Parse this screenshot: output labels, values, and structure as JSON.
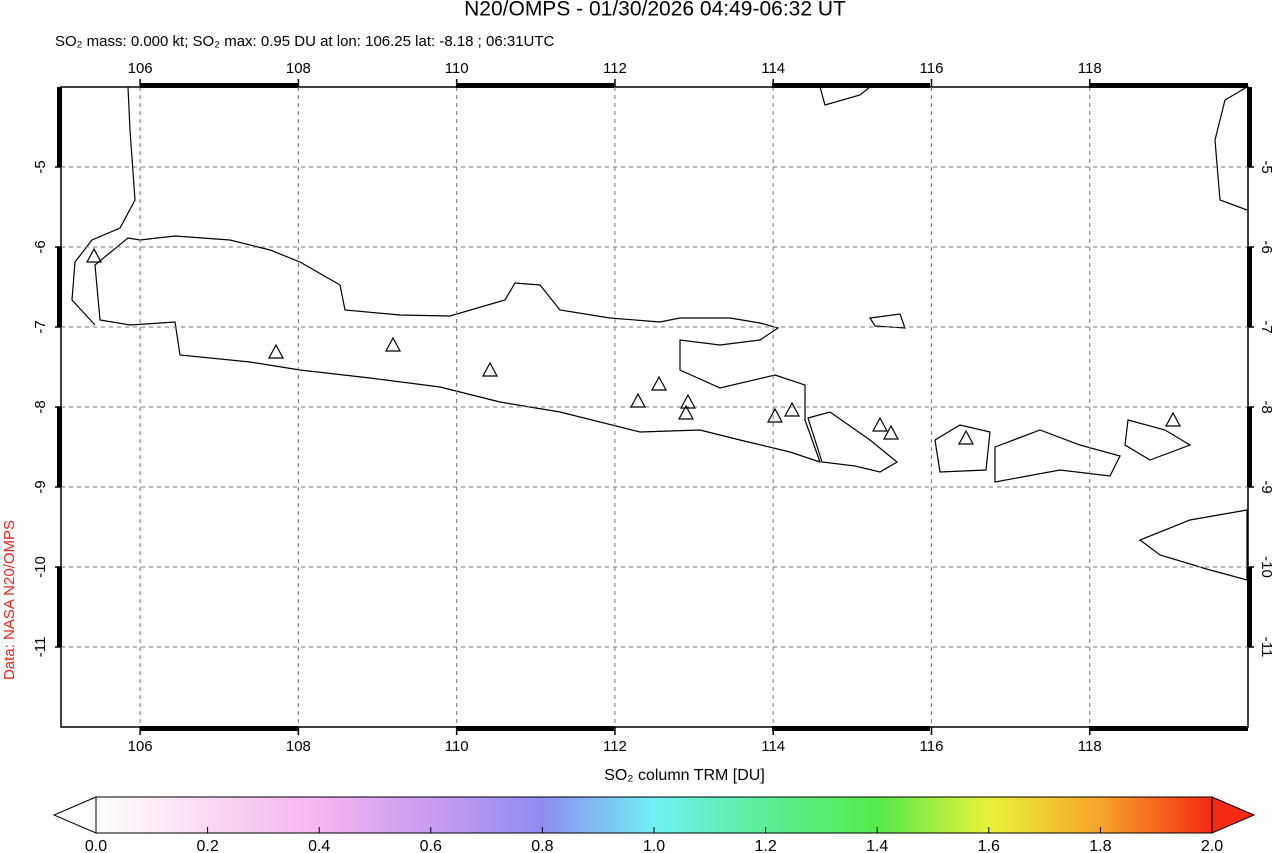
{
  "chart_data": {
    "type": "map",
    "title": "N20/OMPS - 01/30/2026 04:49-06:32 UT",
    "subtitle": "SO₂ mass: 0.000 kt; SO₂ max: 0.95 DU at lon: 106.25 lat: -8.18 ; 06:31UTC",
    "credit": "Data: NASA N20/OMPS",
    "xlim": [
      105,
      120
    ],
    "ylim": [
      -12,
      -4
    ],
    "xticks": [
      106,
      108,
      110,
      112,
      114,
      116,
      118
    ],
    "yticks": [
      -5,
      -6,
      -7,
      -8,
      -9,
      -10,
      -11
    ],
    "grid": true,
    "colorbar": {
      "label": "SO₂ column TRM [DU]",
      "lim": [
        0,
        2
      ],
      "ticks": [
        {
          "value": 0,
          "label": "0.0"
        },
        {
          "value": 0.2,
          "label": "0.2"
        },
        {
          "value": 0.4,
          "label": "0.4"
        },
        {
          "value": 0.6,
          "label": "0.6"
        },
        {
          "value": 0.8,
          "label": "0.8"
        },
        {
          "value": 1,
          "label": "1.0"
        },
        {
          "value": 1.2,
          "label": "1.2"
        },
        {
          "value": 1.4,
          "label": "1.4"
        },
        {
          "value": 1.6,
          "label": "1.6"
        },
        {
          "value": 1.8,
          "label": "1.8"
        },
        {
          "value": 2,
          "label": "2.0"
        }
      ]
    }
  }
}
